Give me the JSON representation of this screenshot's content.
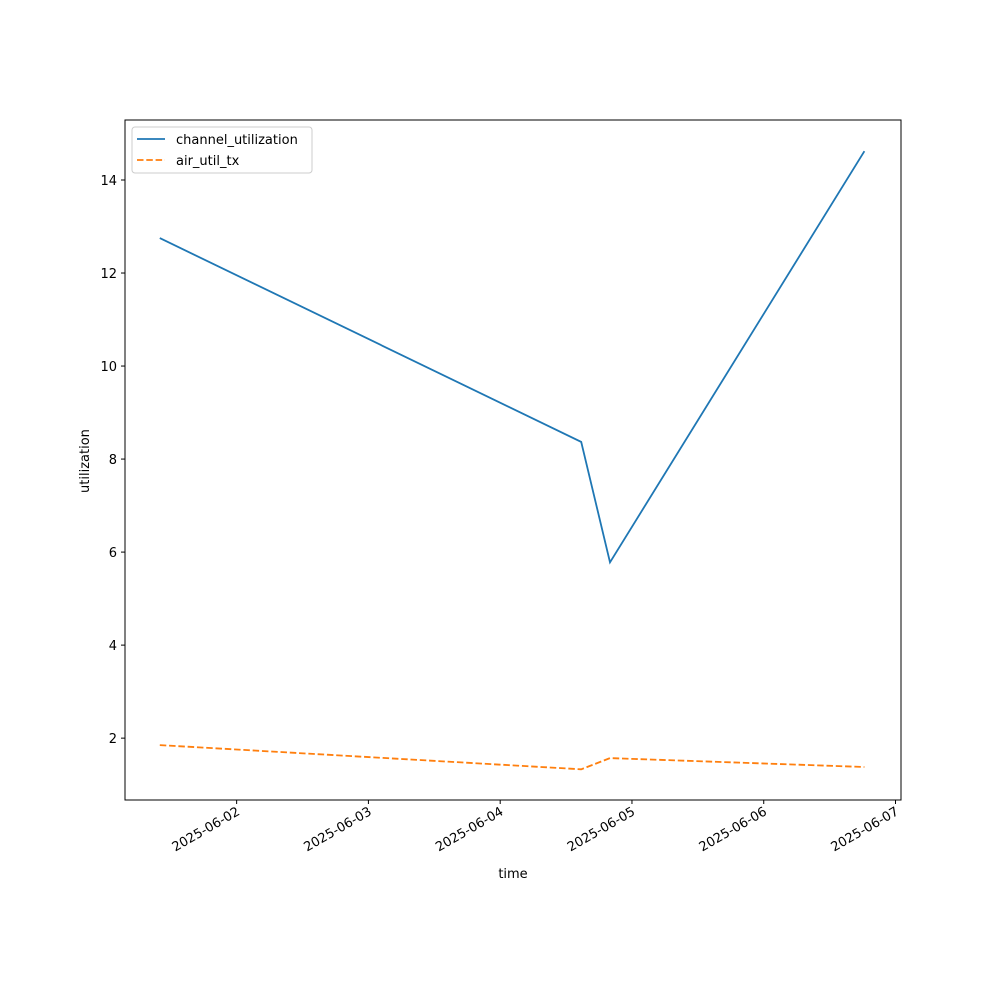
{
  "chart_data": {
    "type": "line",
    "x_label": "time",
    "y_label": "utilization",
    "x": [
      "2025-06-01T10:00",
      "2025-06-04T14:45",
      "2025-06-04T20:00",
      "2025-06-06T18:20"
    ],
    "series": [
      {
        "name": "channel_utilization",
        "color": "#1f77b4",
        "dash": "solid",
        "values": [
          12.75,
          8.37,
          5.78,
          14.62
        ]
      },
      {
        "name": "air_util_tx",
        "color": "#ff7f0e",
        "dash": "dashed",
        "values": [
          1.85,
          1.33,
          1.57,
          1.38
        ]
      }
    ],
    "xlim": [
      "2025-06-01T03:40",
      "2025-06-07T01:00"
    ],
    "xticks": [
      "2025-06-02",
      "2025-06-03",
      "2025-06-04",
      "2025-06-05",
      "2025-06-06",
      "2025-06-07"
    ],
    "ylim": [
      0.67,
      15.29
    ],
    "yticks": [
      2,
      4,
      6,
      8,
      10,
      12,
      14
    ],
    "grid": false,
    "legend": "upper left"
  }
}
